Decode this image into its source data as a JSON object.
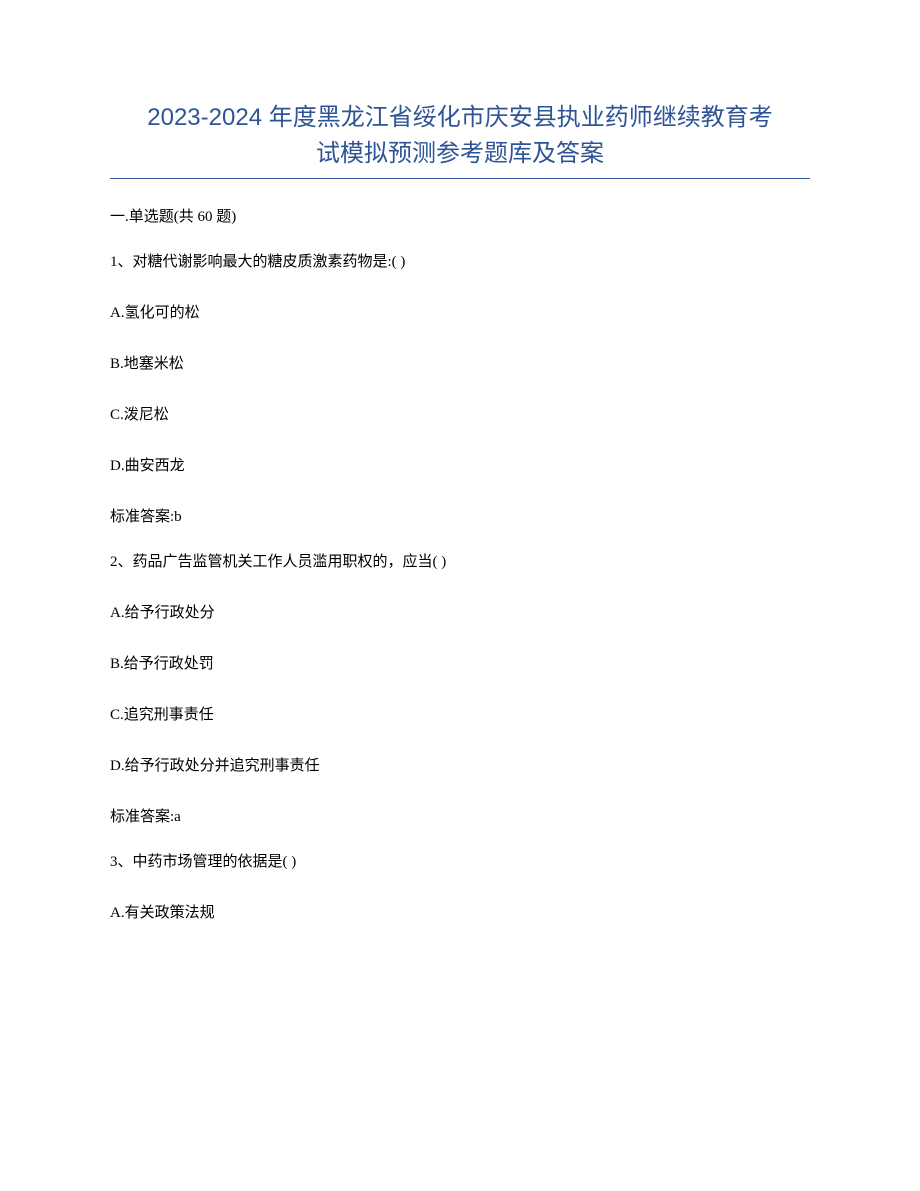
{
  "title_line1": "2023-2024 年度黑龙江省绥化市庆安县执业药师继续教育考",
  "title_line2": "试模拟预测参考题库及答案",
  "section_header": "一.单选题(共 60 题)",
  "colors": {
    "title_color": "#2e5496",
    "underline_color": "#2e5496",
    "text_color": "#000000",
    "background": "#ffffff"
  },
  "typography": {
    "title_fontsize": 24,
    "body_fontsize": 15,
    "title_font": "SimHei",
    "body_font": "SimSun"
  },
  "questions": [
    {
      "number": "1",
      "stem": "1、对糖代谢影响最大的糖皮质激素药物是:( )",
      "options": [
        "A.氢化可的松",
        "B.地塞米松",
        "C.泼尼松",
        "D.曲安西龙"
      ],
      "answer": "标准答案:b"
    },
    {
      "number": "2",
      "stem": "2、药品广告监管机关工作人员滥用职权的，应当( )",
      "options": [
        "A.给予行政处分",
        "B.给予行政处罚",
        "C.追究刑事责任",
        "D.给予行政处分并追究刑事责任"
      ],
      "answer": "标准答案:a"
    },
    {
      "number": "3",
      "stem": "3、中药市场管理的依据是( )",
      "options": [
        "A.有关政策法规"
      ],
      "answer": ""
    }
  ]
}
